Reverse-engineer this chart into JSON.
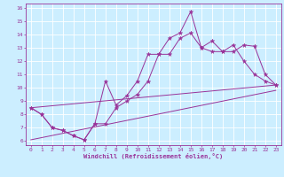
{
  "xlabel": "Windchill (Refroidissement éolien,°C)",
  "bg_color": "#cceeff",
  "line_color": "#993399",
  "grid_color": "#ffffff",
  "xlim": [
    -0.5,
    23.5
  ],
  "ylim": [
    5.7,
    16.3
  ],
  "xticks": [
    0,
    1,
    2,
    3,
    4,
    5,
    6,
    7,
    8,
    9,
    10,
    11,
    12,
    13,
    14,
    15,
    16,
    17,
    18,
    19,
    20,
    21,
    22,
    23
  ],
  "yticks": [
    6,
    7,
    8,
    9,
    10,
    11,
    12,
    13,
    14,
    15,
    16
  ],
  "line1_x": [
    0,
    1,
    2,
    3,
    4,
    5,
    6,
    7,
    8,
    9,
    10,
    11,
    12,
    13,
    14,
    15,
    16,
    17,
    18,
    19,
    20,
    21,
    22,
    23
  ],
  "line1_y": [
    8.5,
    8.0,
    7.0,
    6.8,
    6.4,
    6.1,
    7.3,
    10.5,
    8.7,
    9.4,
    10.5,
    12.5,
    12.5,
    13.7,
    14.1,
    15.7,
    13.0,
    13.5,
    12.7,
    12.7,
    13.2,
    13.1,
    11.0,
    10.2
  ],
  "line2_x": [
    0,
    1,
    2,
    3,
    4,
    5,
    6,
    7,
    8,
    9,
    10,
    11,
    12,
    13,
    14,
    15,
    16,
    17,
    18,
    19,
    20,
    21,
    22,
    23
  ],
  "line2_y": [
    8.5,
    8.0,
    7.0,
    6.8,
    6.4,
    6.1,
    7.3,
    7.3,
    8.5,
    9.0,
    9.5,
    10.5,
    12.5,
    12.5,
    13.7,
    14.1,
    13.0,
    12.7,
    12.7,
    13.2,
    12.0,
    11.0,
    10.5,
    10.2
  ],
  "trend1_x": [
    0,
    23
  ],
  "trend1_y": [
    8.5,
    10.2
  ],
  "trend2_x": [
    0,
    23
  ],
  "trend2_y": [
    6.1,
    9.8
  ]
}
